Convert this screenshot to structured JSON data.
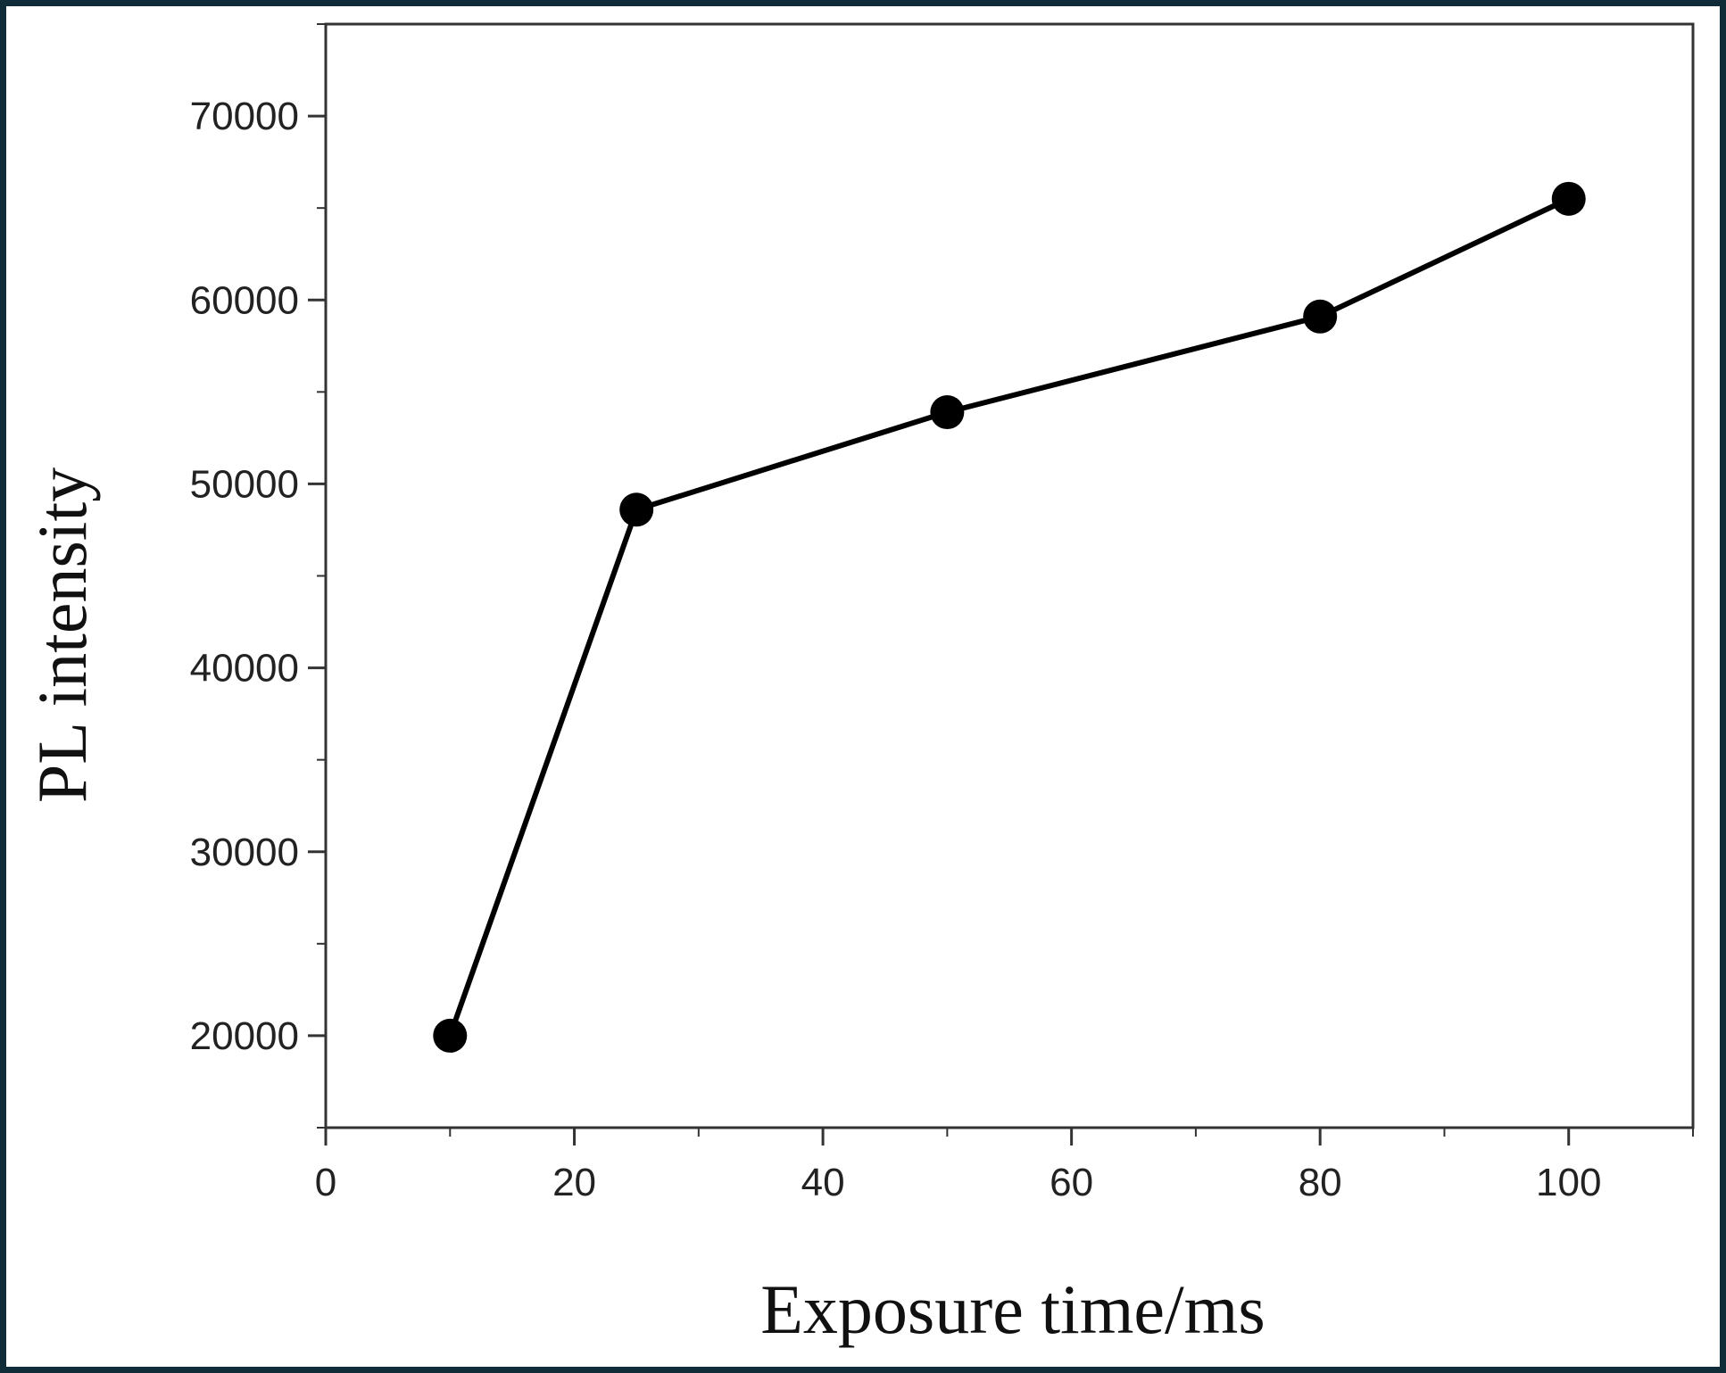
{
  "chart_data": {
    "type": "line",
    "x_label": "Exposure time/ms",
    "y_label": "PL intensity",
    "x": [
      10,
      25,
      50,
      80,
      100
    ],
    "series": [
      {
        "color": "#000000",
        "values": [
          20000,
          48600,
          53900,
          59100,
          65500
        ]
      }
    ],
    "xlim": [
      0,
      110
    ],
    "xticks": [
      0,
      20,
      40,
      60,
      80,
      100
    ],
    "ylim": [
      15000,
      75000
    ],
    "yticks": [
      20000,
      30000,
      40000,
      50000,
      60000,
      70000
    ],
    "grid": false
  }
}
